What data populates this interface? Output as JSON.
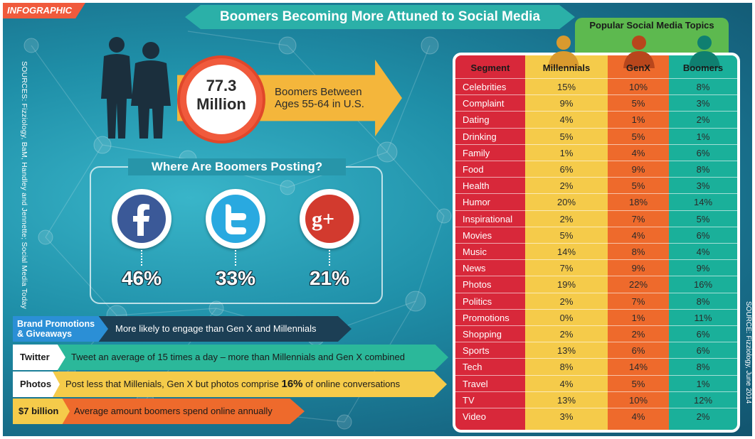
{
  "tag": "INFOGRAPHIC",
  "title": "Boomers Becoming More Attuned to Social Media",
  "sources_left": "SOURCES: Fizziology, BaM, Handley and Jennette; Social Media Today",
  "source_right": "SOURCE: Fizziology, June 2014",
  "headline_stat": {
    "value_line1": "77.3",
    "value_line2": "Million",
    "desc_line1": "Boomers Between",
    "desc_line2": "Ages 55-64 in U.S."
  },
  "posting": {
    "title": "Where Are Boomers Posting?",
    "networks": [
      {
        "name": "facebook-icon",
        "pct": "46%",
        "color": "#3b5998"
      },
      {
        "name": "twitter-icon",
        "pct": "33%",
        "color": "#29a9e0"
      },
      {
        "name": "google-plus-icon",
        "pct": "21%",
        "color": "#d23a2e"
      }
    ]
  },
  "facts": [
    {
      "label1": "Brand Promotions",
      "label2": "& Giveaways",
      "text": "More likely to engage than Gen X and Millennials"
    },
    {
      "label1": "Twitter",
      "label2": "",
      "text": "Tweet an average of 15 times a day – more than Millennials and Gen X combined"
    },
    {
      "label1": "Photos",
      "label2": "",
      "text_before": "Post less that Millenials, Gen X but photos comprise ",
      "text_bold": "16%",
      "text_after": " of online conversations"
    },
    {
      "label1": "$7 billion",
      "label2": "",
      "text": "Average amount boomers spend online annually"
    }
  ],
  "table": {
    "tab_title": "Popular Social Media Topics",
    "headers": [
      "Segment",
      "Millennials",
      "GenX",
      "Boomers"
    ],
    "rows": [
      [
        "Celebrities",
        "15%",
        "10%",
        "8%"
      ],
      [
        "Complaint",
        "9%",
        "5%",
        "3%"
      ],
      [
        "Dating",
        "4%",
        "1%",
        "2%"
      ],
      [
        "Drinking",
        "5%",
        "5%",
        "1%"
      ],
      [
        "Family",
        "1%",
        "4%",
        "6%"
      ],
      [
        "Food",
        "6%",
        "9%",
        "8%"
      ],
      [
        "Health",
        "2%",
        "5%",
        "3%"
      ],
      [
        "Humor",
        "20%",
        "18%",
        "14%"
      ],
      [
        "Inspirational",
        "2%",
        "7%",
        "5%"
      ],
      [
        "Movies",
        "5%",
        "4%",
        "6%"
      ],
      [
        "Music",
        "14%",
        "8%",
        "4%"
      ],
      [
        "News",
        "7%",
        "9%",
        "9%"
      ],
      [
        "Photos",
        "19%",
        "22%",
        "16%"
      ],
      [
        "Politics",
        "2%",
        "7%",
        "8%"
      ],
      [
        "Promotions",
        "0%",
        "1%",
        "11%"
      ],
      [
        "Shopping",
        "2%",
        "2%",
        "6%"
      ],
      [
        "Sports",
        "13%",
        "6%",
        "6%"
      ],
      [
        "Tech",
        "8%",
        "14%",
        "8%"
      ],
      [
        "Travel",
        "4%",
        "5%",
        "1%"
      ],
      [
        "TV",
        "13%",
        "10%",
        "12%"
      ],
      [
        "Video",
        "3%",
        "4%",
        "2%"
      ]
    ]
  }
}
